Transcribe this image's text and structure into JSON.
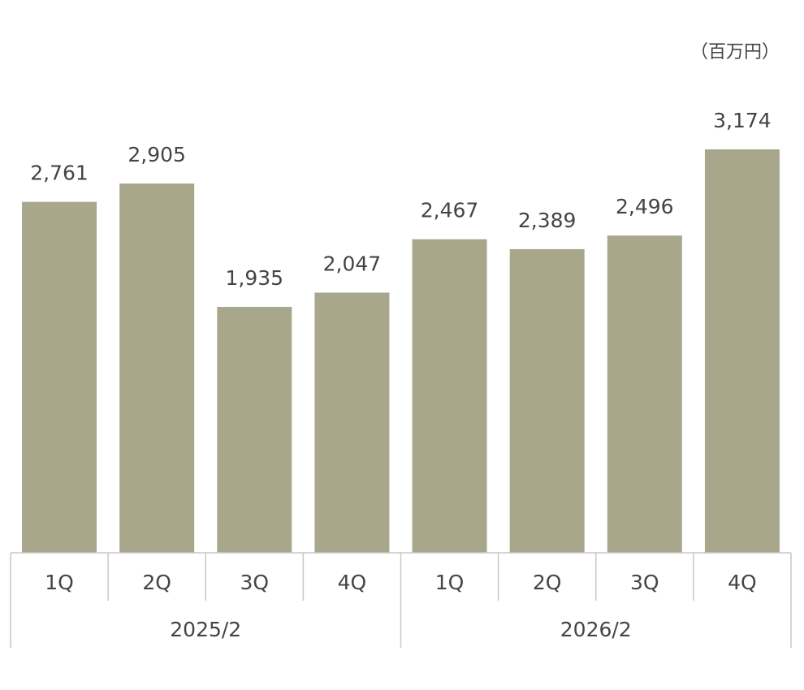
{
  "chart_data": {
    "type": "bar",
    "unit": "（百万円）",
    "categories": [
      "1Q",
      "2Q",
      "3Q",
      "4Q",
      "1Q",
      "2Q",
      "3Q",
      "4Q"
    ],
    "groups": [
      "2025/2",
      "2026/2"
    ],
    "values": [
      2761,
      2905,
      1935,
      2047,
      2467,
      2389,
      2496,
      3174
    ],
    "value_labels": [
      "2,761",
      "2,905",
      "1,935",
      "2,047",
      "2,467",
      "2,389",
      "2,496",
      "3,174"
    ],
    "color": "#a8a78c"
  }
}
